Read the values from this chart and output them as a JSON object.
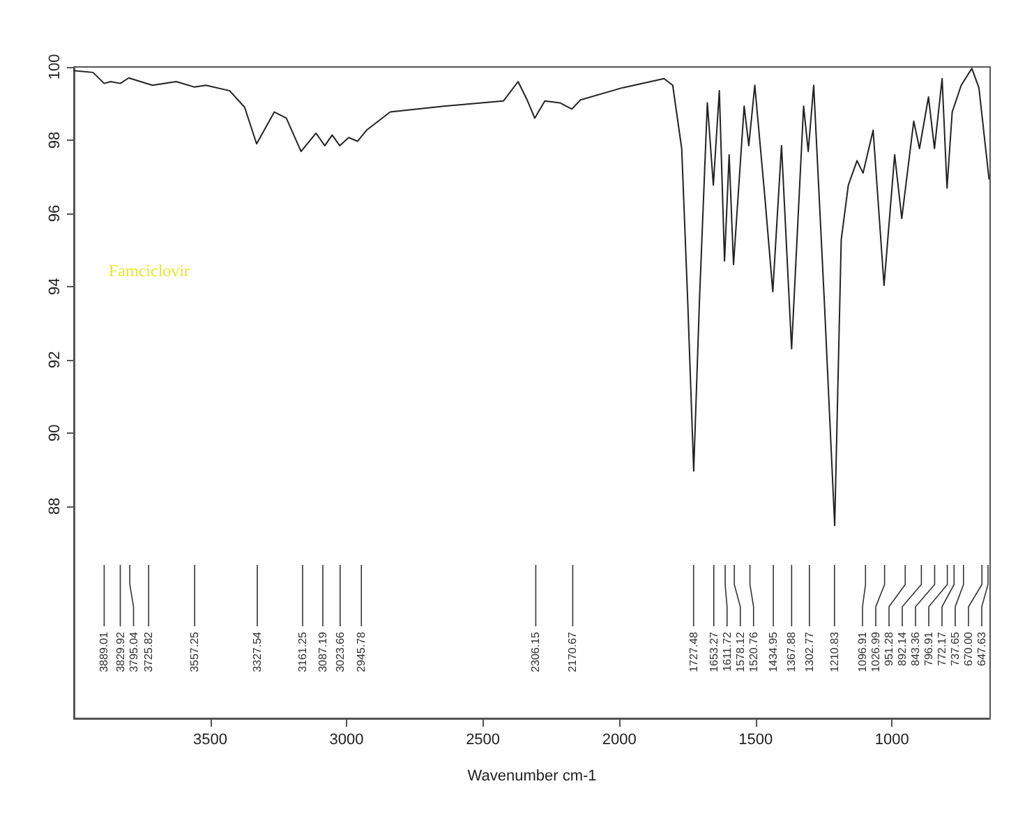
{
  "chart_data": {
    "type": "line",
    "xlabel": "Wavenumber cm-1",
    "color": "#222222",
    "x": [
      4000,
      3930,
      3889.01,
      3865,
      3829.92,
      3799,
      3712,
      3625,
      3557.25,
      3516,
      3429,
      3374,
      3330,
      3265,
      3221,
      3167,
      3112,
      3080,
      3053,
      3025,
      2992,
      2960,
      2927,
      2840,
      2643,
      2425,
      2371,
      2338,
      2310,
      2273,
      2218,
      2174,
      2142,
      1989,
      1836,
      1804,
      1771,
      1749,
      1727,
      1706,
      1677,
      1655,
      1633,
      1614,
      1597,
      1581,
      1542,
      1525,
      1503,
      1466,
      1437,
      1405,
      1368,
      1324,
      1307,
      1287,
      1248,
      1210,
      1186,
      1160,
      1128,
      1106,
      1069,
      1029,
      990,
      964,
      920,
      899,
      866,
      844,
      816,
      798,
      779,
      746,
      707,
      681,
      644
    ],
    "values": [
      99.9,
      99.85,
      99.55,
      99.6,
      99.55,
      99.7,
      99.5,
      99.6,
      99.45,
      99.5,
      99.35,
      98.9,
      97.9,
      98.77,
      98.6,
      97.69,
      98.19,
      97.85,
      98.14,
      97.85,
      98.07,
      97.97,
      98.27,
      98.77,
      98.93,
      99.07,
      99.6,
      99.1,
      98.6,
      99.07,
      99.02,
      98.85,
      99.1,
      99.43,
      99.68,
      99.5,
      97.77,
      93.6,
      88.96,
      93.6,
      99.02,
      96.77,
      99.35,
      94.7,
      97.6,
      94.6,
      98.93,
      97.85,
      99.5,
      96.44,
      93.86,
      97.85,
      92.3,
      98.93,
      97.69,
      99.5,
      93.6,
      87.47,
      95.28,
      96.77,
      97.44,
      97.1,
      98.27,
      94.03,
      97.6,
      95.86,
      98.52,
      97.77,
      99.18,
      97.77,
      99.68,
      96.69,
      98.77,
      99.5,
      99.96,
      99.43,
      96.94
    ],
    "xlim": [
      4000,
      640
    ],
    "xticks": [
      3500,
      3000,
      2500,
      2000,
      1500,
      1000
    ],
    "ylim": [
      82.2,
      100
    ],
    "yticks": [
      88,
      90,
      92,
      94,
      96,
      98,
      100
    ],
    "grid": false,
    "annotations": [
      "Famciclovir",
      {
        "text": "3889.01",
        "x": 3889.01
      },
      {
        "text": "3829.92",
        "x": 3829.92
      },
      {
        "text": "3795.04",
        "x": 3795.04
      },
      {
        "text": "3725.82",
        "x": 3725.82
      },
      {
        "text": "3557.25",
        "x": 3557.25
      },
      {
        "text": "3327.54",
        "x": 3327.54
      },
      {
        "text": "3161.25",
        "x": 3161.25
      },
      {
        "text": "3087.19",
        "x": 3087.19
      },
      {
        "text": "3023.66",
        "x": 3023.66
      },
      {
        "text": "2945.78",
        "x": 2945.78
      },
      {
        "text": "2306.15",
        "x": 2306.15
      },
      {
        "text": "2170.67",
        "x": 2170.67
      },
      {
        "text": "1727.48",
        "x": 1727.48
      },
      {
        "text": "1653.27",
        "x": 1653.27
      },
      {
        "text": "1611.72",
        "x": 1611.72
      },
      {
        "text": "1578.12",
        "x": 1578.12
      },
      {
        "text": "1520.76",
        "x": 1520.76
      },
      {
        "text": "1434.95",
        "x": 1434.95
      },
      {
        "text": "1367.88",
        "x": 1367.88
      },
      {
        "text": "1302.77",
        "x": 1302.77
      },
      {
        "text": "1210.83",
        "x": 1210.83
      },
      {
        "text": "1096.91",
        "x": 1096.91
      },
      {
        "text": "1026.99",
        "x": 1026.99
      },
      {
        "text": "951.28",
        "x": 951.28
      },
      {
        "text": "892.14",
        "x": 892.14
      },
      {
        "text": "843.36",
        "x": 843.36
      },
      {
        "text": "796.91",
        "x": 796.91
      },
      {
        "text": "772.17",
        "x": 772.17
      },
      {
        "text": "737.65",
        "x": 737.65
      },
      {
        "text": "670.00",
        "x": 670.0
      },
      {
        "text": "647.63",
        "x": 647.63
      }
    ]
  }
}
